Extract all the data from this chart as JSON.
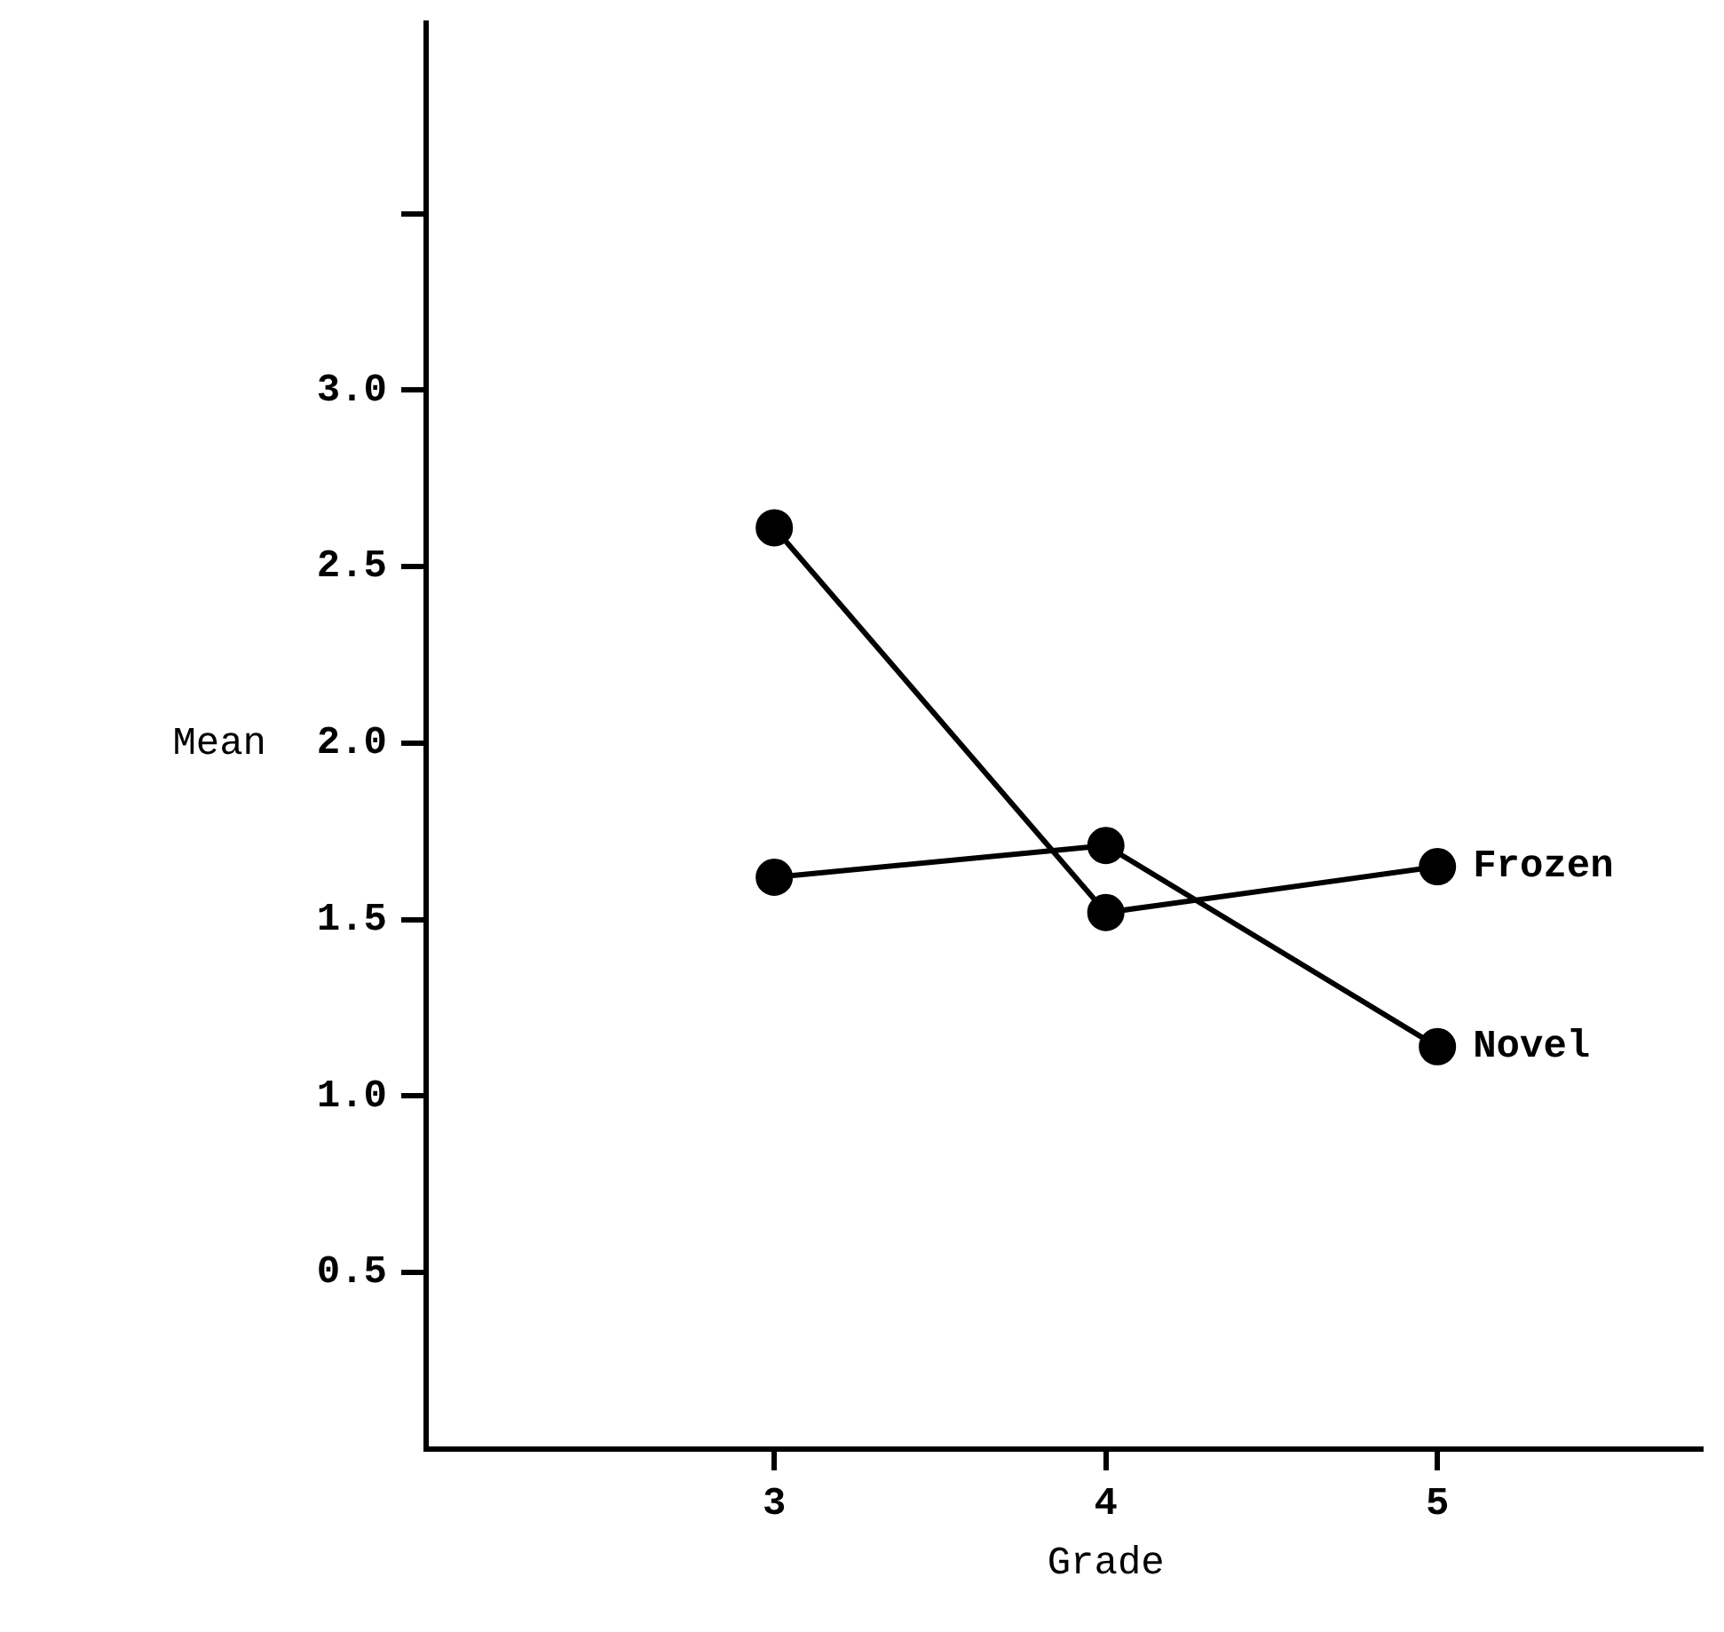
{
  "chart_data": {
    "type": "line",
    "xlabel": "Grade",
    "ylabel": "Mean",
    "x": [
      3,
      4,
      5
    ],
    "xlim": [
      1.95,
      5.8
    ],
    "xticks": [
      3,
      4,
      5
    ],
    "ylim": [
      0,
      4.04
    ],
    "yticks": [
      {
        "value": 0.5,
        "label": "0.5"
      },
      {
        "value": 1,
        "label": "1.0"
      },
      1.5,
      {
        "value": 2,
        "label": "2.0"
      },
      2.5,
      {
        "value": 3,
        "label": "3.0"
      },
      {
        "value": 3.5,
        "label": null
      }
    ],
    "series": [
      {
        "name": "Frozen",
        "color": "#000000",
        "values": [
          2.61,
          1.52,
          1.65
        ]
      },
      {
        "name": "Novel",
        "color": "#000000",
        "values": [
          1.62,
          1.71,
          1.14
        ]
      }
    ],
    "marker": "circle",
    "line_style": "solid",
    "grid": false,
    "legend": false
  }
}
